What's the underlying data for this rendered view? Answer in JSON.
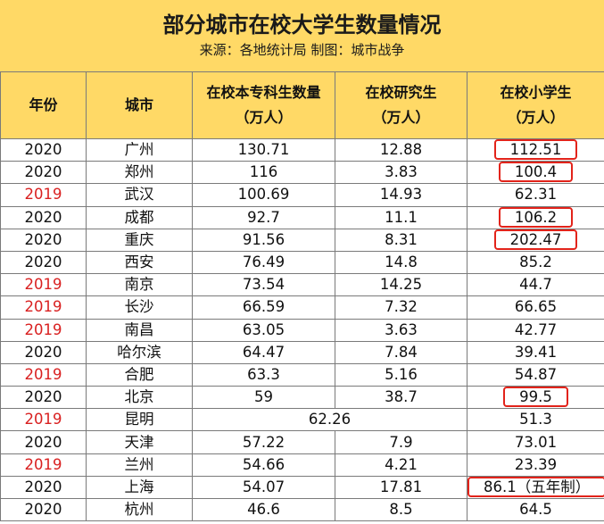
{
  "title": "部分城市在校大学生数量情况",
  "subtitle": "来源：各地统计局   制图：城市战争",
  "headers": {
    "year": "年份",
    "city": "城市",
    "undergrad_line1": "在校本专科生数量",
    "undergrad_line2": "（万人）",
    "grad_line1": "在校研究生",
    "grad_line2": "（万人）",
    "primary_line1": "在校小学生",
    "primary_line2": "（万人）"
  },
  "rows": [
    {
      "year": "2020",
      "city": "广州",
      "undergrad": "130.71",
      "grad": "12.88",
      "primary": "112.51",
      "highlight": true
    },
    {
      "year": "2020",
      "city": "郑州",
      "undergrad": "116",
      "grad": "3.83",
      "primary": "100.4",
      "highlight": true
    },
    {
      "year": "2019",
      "city": "武汉",
      "undergrad": "100.69",
      "grad": "14.93",
      "primary": "62.31",
      "highlight": false
    },
    {
      "year": "2020",
      "city": "成都",
      "undergrad": "92.7",
      "grad": "11.1",
      "primary": "106.2",
      "highlight": true
    },
    {
      "year": "2020",
      "city": "重庆",
      "undergrad": "91.56",
      "grad": "8.31",
      "primary": "202.47",
      "highlight": true
    },
    {
      "year": "2020",
      "city": "西安",
      "undergrad": "76.49",
      "grad": "14.8",
      "primary": "85.2",
      "highlight": false
    },
    {
      "year": "2019",
      "city": "南京",
      "undergrad": "73.54",
      "grad": "14.25",
      "primary": "44.7",
      "highlight": false
    },
    {
      "year": "2019",
      "city": "长沙",
      "undergrad": "66.59",
      "grad": "7.32",
      "primary": "66.65",
      "highlight": false
    },
    {
      "year": "2019",
      "city": "南昌",
      "undergrad": "63.05",
      "grad": "3.63",
      "primary": "42.77",
      "highlight": false
    },
    {
      "year": "2020",
      "city": "哈尔滨",
      "undergrad": "64.47",
      "grad": "7.84",
      "primary": "39.41",
      "highlight": false
    },
    {
      "year": "2019",
      "city": "合肥",
      "undergrad": "63.3",
      "grad": "5.16",
      "primary": "54.87",
      "highlight": false
    },
    {
      "year": "2020",
      "city": "北京",
      "undergrad": "59",
      "grad": "38.7",
      "primary": "99.5",
      "highlight": true
    },
    {
      "year": "2019",
      "city": "昆明",
      "combined": "62.26",
      "primary": "51.3",
      "highlight": false
    },
    {
      "year": "2020",
      "city": "天津",
      "undergrad": "57.22",
      "grad": "7.9",
      "primary": "73.01",
      "highlight": false
    },
    {
      "year": "2019",
      "city": "兰州",
      "undergrad": "54.66",
      "grad": "4.21",
      "primary": "23.39",
      "highlight": false
    },
    {
      "year": "2020",
      "city": "上海",
      "undergrad": "54.07",
      "grad": "17.81",
      "primary": "86.1（五年制）",
      "highlight": true
    },
    {
      "year": "2020",
      "city": "杭州",
      "undergrad": "46.6",
      "grad": "8.5",
      "primary": "64.5",
      "highlight": false
    }
  ],
  "colors": {
    "header_bg": "#ffd966",
    "year_2019_text": "#d92020",
    "highlight_border": "#e2231a"
  }
}
